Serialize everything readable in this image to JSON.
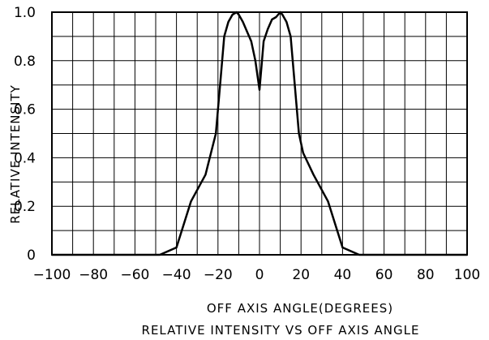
{
  "chart_data": {
    "type": "line",
    "title": "RELATIVE INTENSITY VS OFF AXIS ANGLE",
    "xlabel": "OFF AXIS ANGLE(DEGREES)",
    "ylabel": "RELATIVE INTENSITY",
    "xlim": [
      -100,
      100
    ],
    "ylim": [
      0,
      1.0
    ],
    "grid": true,
    "x_ticks": [
      -100,
      -80,
      -60,
      -40,
      -20,
      0,
      20,
      40,
      60,
      80,
      100
    ],
    "x_tick_labels": [
      "−100",
      "−80",
      "−60",
      "−40",
      "−20",
      "0",
      "20",
      "40",
      "60",
      "80",
      "100"
    ],
    "y_ticks": [
      0,
      0.2,
      0.4,
      0.6,
      0.8,
      1.0
    ],
    "y_tick_labels": [
      "0",
      "0.2",
      "0.4",
      "0.6",
      "0.8",
      "1.0"
    ],
    "series": [
      {
        "x": [
          -100,
          -48,
          -40,
          -33,
          -26,
          -21,
          -19,
          -17,
          -15,
          -13,
          -11,
          -10,
          -8,
          -6,
          -4,
          -2,
          0,
          2,
          4,
          6,
          8,
          10,
          11,
          13,
          15,
          17,
          19,
          21,
          26,
          33,
          40,
          48,
          100
        ],
        "y": [
          0,
          0,
          0.03,
          0.22,
          0.33,
          0.5,
          0.7,
          0.9,
          0.96,
          0.99,
          1.0,
          0.99,
          0.96,
          0.92,
          0.88,
          0.8,
          0.68,
          0.88,
          0.93,
          0.97,
          0.98,
          1.0,
          0.99,
          0.96,
          0.9,
          0.7,
          0.5,
          0.42,
          0.33,
          0.22,
          0.03,
          0,
          0
        ]
      }
    ]
  }
}
